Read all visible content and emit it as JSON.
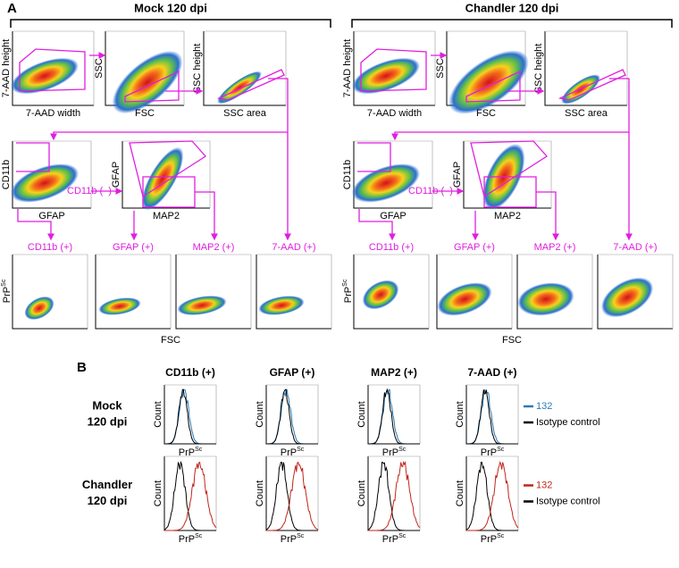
{
  "panel_a": {
    "label": "A",
    "groups": [
      "Mock 120 dpi",
      "Chandler 120 dpi"
    ],
    "gating_plots": [
      {
        "x": "7-AAD width",
        "y": "7-AAD height"
      },
      {
        "x": "FSC",
        "y": "SSC"
      },
      {
        "x": "SSC area",
        "y": "SSC height"
      },
      {
        "x": "GFAP",
        "y": "CD11b"
      },
      {
        "x": "MAP2",
        "y": "GFAP"
      }
    ],
    "gate_label": "CD11b (–)",
    "populations": [
      "CD11b (+)",
      "GFAP (+)",
      "MAP2 (+)",
      "7-AAD (+)"
    ],
    "y_label": {
      "base": "PrP",
      "sup": "Sc"
    },
    "x_label": "FSC"
  },
  "panel_b": {
    "label": "B",
    "columns": [
      "CD11b (+)",
      "GFAP (+)",
      "MAP2 (+)",
      "7-AAD (+)"
    ],
    "rows": [
      {
        "label": [
          "Mock",
          "120 dpi"
        ],
        "legend": [
          {
            "name": "132",
            "color": "#2a7ab8"
          },
          {
            "name": "Isotype control",
            "color": "#000000"
          }
        ]
      },
      {
        "label": [
          "Chandler",
          "120 dpi"
        ],
        "legend": [
          {
            "name": "132",
            "color": "#c0261c"
          },
          {
            "name": "Isotype control",
            "color": "#000000"
          }
        ]
      }
    ],
    "y_label": "Count",
    "x_label": {
      "base": "PrP",
      "sup": "Sc"
    }
  }
}
